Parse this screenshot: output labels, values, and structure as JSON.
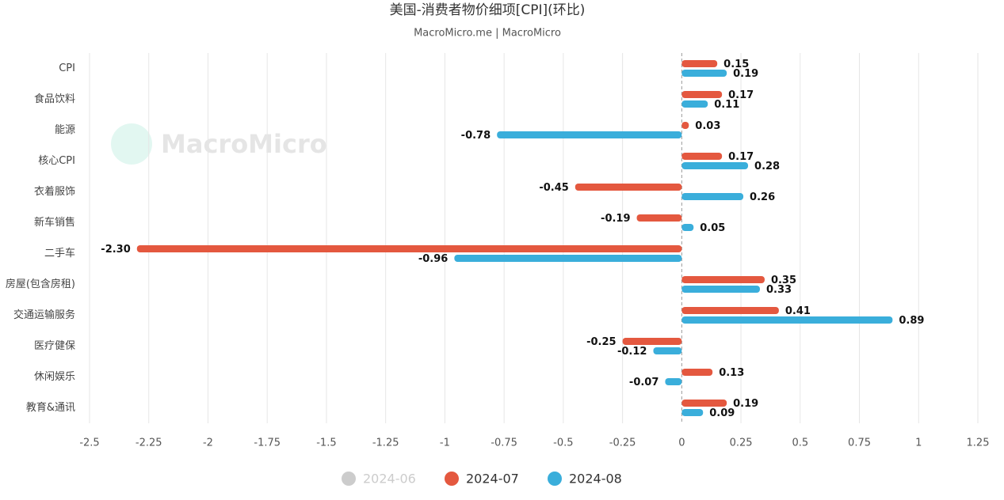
{
  "chart_data": {
    "type": "hbar",
    "title": "美国-消费者物价细项[CPI](环比)",
    "subtitle": "MacroMicro.me | MacroMicro",
    "watermark": "MacroMicro",
    "categories": [
      "CPI",
      "食品饮料",
      "能源",
      "核心CPI",
      "衣着服饰",
      "新车销售",
      "二手车",
      "房屋(包含房租)",
      "交通运输服务",
      "医疗健保",
      "休闲娱乐",
      "教育&通讯"
    ],
    "series": [
      {
        "name": "2024-06",
        "color": "#cccccc",
        "hidden": true,
        "values": [
          null,
          null,
          null,
          null,
          null,
          null,
          null,
          null,
          null,
          null,
          null,
          null
        ]
      },
      {
        "name": "2024-07",
        "color": "#e4583f",
        "values": [
          0.15,
          0.17,
          0.03,
          0.17,
          -0.45,
          -0.19,
          -2.3,
          0.35,
          0.41,
          -0.25,
          0.13,
          0.19
        ],
        "value_labels": [
          "0.15",
          "0.17",
          "0.03",
          "0.17",
          "-0.45",
          "-0.19",
          "-2.30",
          "0.35",
          "0.41",
          "-0.25",
          "0.13",
          "0.19"
        ]
      },
      {
        "name": "2024-08",
        "color": "#3aaedb",
        "values": [
          0.19,
          0.11,
          -0.78,
          0.28,
          0.26,
          0.05,
          -0.96,
          0.33,
          0.89,
          -0.12,
          -0.07,
          0.09
        ],
        "value_labels": [
          "0.19",
          "0.11",
          "-0.78",
          "0.28",
          "0.26",
          "0.05",
          "-0.96",
          "0.33",
          "0.89",
          "-0.12",
          "-0.07",
          "0.09"
        ]
      }
    ],
    "xlim": [
      -2.5,
      1.25
    ],
    "xticks": [
      -2.5,
      -2.25,
      -2,
      -1.75,
      -1.5,
      -1.25,
      -1,
      -0.75,
      -0.5,
      -0.25,
      0,
      0.25,
      0.5,
      0.75,
      1,
      1.25
    ],
    "grid": true
  }
}
